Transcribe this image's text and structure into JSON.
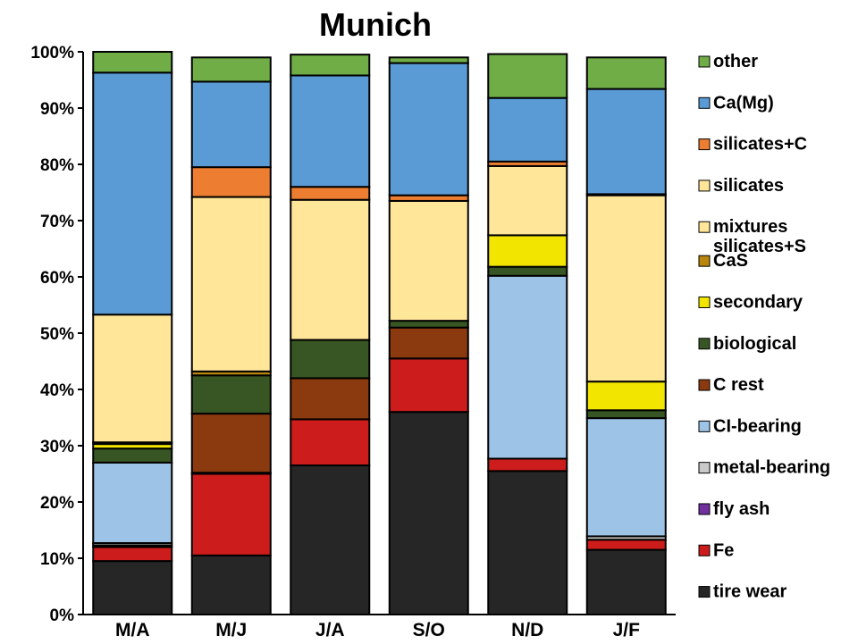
{
  "chart_data": {
    "type": "bar",
    "stacked": true,
    "title": "Munich",
    "xlabel": "",
    "ylabel": "",
    "ylim": [
      0,
      100
    ],
    "y_ticks": [
      "0%",
      "10%",
      "20%",
      "30%",
      "40%",
      "50%",
      "60%",
      "70%",
      "80%",
      "90%",
      "100%"
    ],
    "categories": [
      "M/A",
      "M/J",
      "J/A",
      "S/O",
      "N/D",
      "J/F"
    ],
    "legend_position": "right",
    "grid": false,
    "series": [
      {
        "name": "tire wear",
        "color": "#262626",
        "values": [
          9.5,
          10.5,
          26.5,
          36,
          25.5,
          11.5
        ]
      },
      {
        "name": "Fe",
        "color": "#cc1c1c",
        "values": [
          2.5,
          14.5,
          8.2,
          9.5,
          2.2,
          1.8
        ]
      },
      {
        "name": "fly ash",
        "color": "#7030a0",
        "values": [
          0.3,
          0,
          0,
          0,
          0,
          0
        ]
      },
      {
        "name": "metal-bearing",
        "color": "#c9c9c9",
        "values": [
          0.4,
          0.2,
          0,
          0,
          0,
          0.6
        ]
      },
      {
        "name": "CI-bearing",
        "color": "#9dc3e6",
        "values": [
          14.3,
          0,
          0,
          0,
          32.5,
          21
        ]
      },
      {
        "name": "C rest",
        "color": "#8b3a10",
        "values": [
          0,
          10.5,
          7.3,
          5.5,
          0,
          0
        ]
      },
      {
        "name": "biological",
        "color": "#375623",
        "values": [
          2.5,
          6.8,
          6.8,
          1.2,
          1.6,
          1.4
        ]
      },
      {
        "name": "secondary",
        "color": "#f2e600",
        "values": [
          0.8,
          0,
          0,
          0,
          5.6,
          5.1
        ]
      },
      {
        "name": "CaS",
        "color": "#b8860b",
        "values": [
          0.3,
          0.7,
          0,
          0,
          0,
          0
        ]
      },
      {
        "name": "mixtures silicates+S",
        "color": "#ffe699",
        "values": [
          0,
          0,
          0,
          0,
          0,
          0
        ]
      },
      {
        "name": "silicates",
        "color": "#ffe699",
        "values": [
          22.7,
          31,
          24.9,
          21.3,
          12.3,
          33.1
        ]
      },
      {
        "name": "silicates+C",
        "color": "#ed7d31",
        "values": [
          0,
          5.3,
          2.3,
          1,
          0.8,
          0.2
        ]
      },
      {
        "name": "Ca(Mg)",
        "color": "#5b9bd5",
        "values": [
          43,
          15.2,
          19.8,
          23.5,
          11.3,
          18.7
        ]
      },
      {
        "name": "other",
        "color": "#70ad47",
        "values": [
          3.7,
          4.3,
          3.7,
          1,
          7.8,
          5.6
        ]
      }
    ]
  }
}
